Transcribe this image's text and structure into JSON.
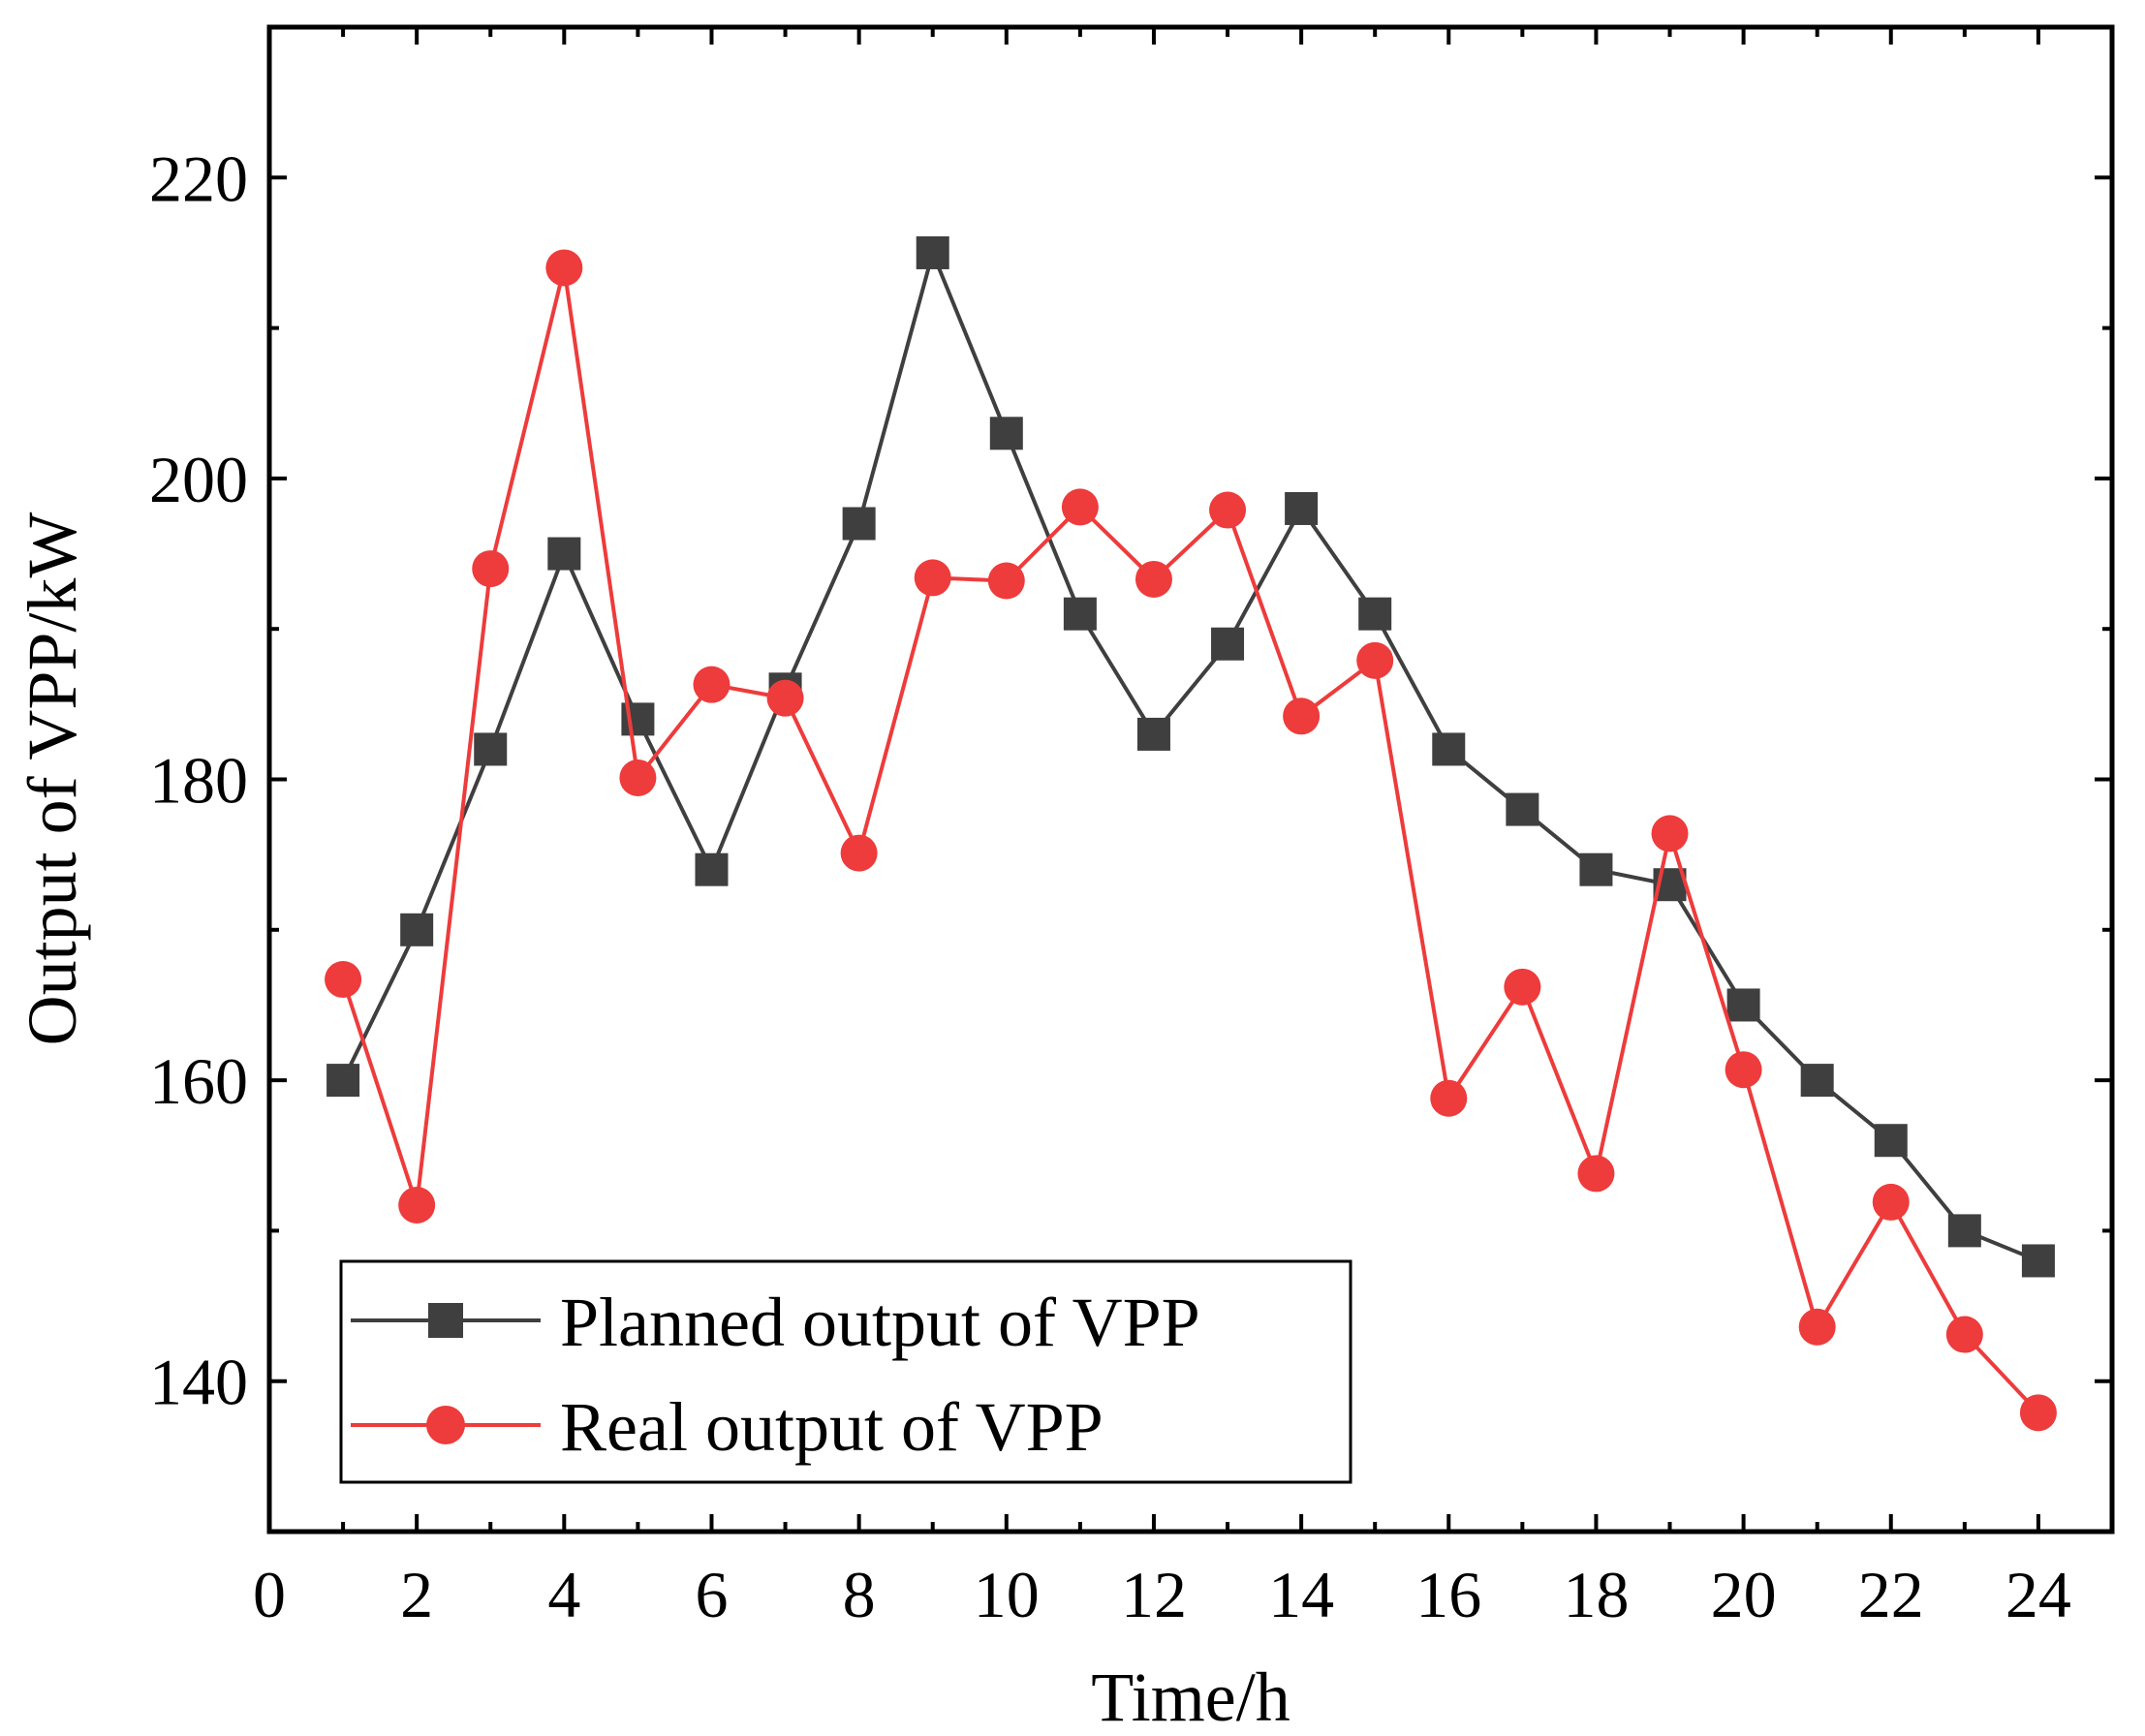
{
  "chart_data": {
    "type": "line",
    "xlabel": "Time/h",
    "ylabel": "Output of VPP/kW",
    "xlim": [
      0,
      25
    ],
    "ylim": [
      130,
      230
    ],
    "xticks": [
      0,
      2,
      4,
      6,
      8,
      10,
      12,
      14,
      16,
      18,
      20,
      22,
      24
    ],
    "yticks": [
      140,
      160,
      180,
      200,
      220
    ],
    "grid": false,
    "legend_position": "bottom-left",
    "series": [
      {
        "name": "Planned output of VPP",
        "color": "#3f3f3f",
        "marker": "square",
        "x": [
          1,
          2,
          3,
          4,
          5,
          6,
          7,
          8,
          9,
          10,
          11,
          12,
          13,
          14,
          15,
          16,
          17,
          18,
          19,
          20,
          21,
          22,
          23,
          24
        ],
        "values": [
          160,
          170,
          182,
          195,
          184,
          174,
          186,
          197,
          215,
          203,
          191,
          183,
          189,
          198,
          191,
          182,
          178,
          174,
          173,
          165,
          160,
          156,
          150,
          148
        ]
      },
      {
        "name": "Real output of VPP",
        "color": "#ee3b3b",
        "marker": "circle",
        "x": [
          1,
          2,
          3,
          4,
          5,
          6,
          7,
          8,
          9,
          10,
          11,
          12,
          13,
          14,
          15,
          16,
          17,
          18,
          19,
          20,
          21,
          22,
          23,
          24
        ],
        "values": [
          166.7,
          151.7,
          194,
          214,
          180.1,
          186.3,
          185.4,
          175.1,
          193.4,
          193.2,
          198.1,
          193.3,
          197.9,
          184.2,
          187.9,
          158.8,
          166.2,
          153.8,
          176.4,
          160.7,
          143.6,
          151.9,
          143.1,
          137.9
        ]
      }
    ]
  }
}
